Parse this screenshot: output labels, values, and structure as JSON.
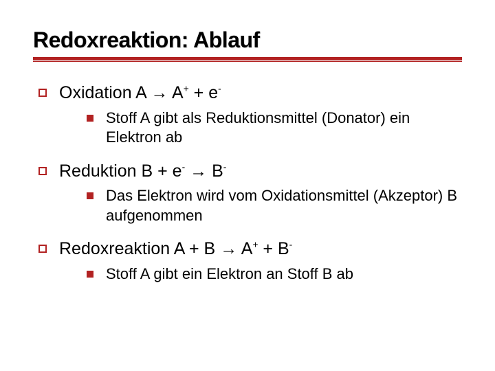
{
  "colors": {
    "rule": "#b22222",
    "bullet_open_border": "#b22222",
    "bullet_solid": "#b22222",
    "text": "#000000",
    "background": "#ffffff"
  },
  "title": "Redoxreaktion: Ablauf",
  "items": [
    {
      "label_prefix": "Oxidation  A ",
      "arrow": "→",
      "label_suffix": " A",
      "sup1": "+",
      "conn": " + e",
      "sup2": "-",
      "tail": "",
      "sub": "Stoff A gibt als Reduktionsmittel (Donator) ein Elektron ab"
    },
    {
      "label_prefix": "Reduktion  B + e",
      "sup_pre": "-",
      "conn0": " ",
      "arrow": "→",
      "label_suffix": " B",
      "sup1": "-",
      "conn": "",
      "sup2": "",
      "tail": "",
      "sub": "Das Elektron wird vom Oxidationsmittel (Akzeptor) B aufgenommen"
    },
    {
      "label_prefix": "Redoxreaktion  A + B ",
      "arrow": "→",
      "label_suffix": " A",
      "sup1": "+",
      "conn": " + B",
      "sup2": "-",
      "tail": "",
      "sub": "Stoff A gibt ein Elektron an Stoff B ab"
    }
  ]
}
